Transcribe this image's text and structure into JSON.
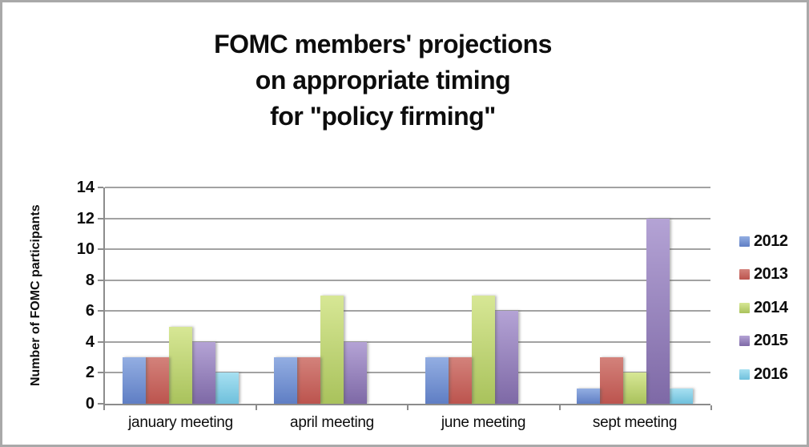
{
  "window": {
    "background": "#ffffff",
    "border_color": "#a9a9a9"
  },
  "header": {
    "title_lines": [
      "FOMC members' projections",
      "on appropriate timing",
      "for \"policy firming\""
    ]
  },
  "chart_data": {
    "type": "bar",
    "title": "FOMC members' projections on appropriate timing for \"policy firming\"",
    "xlabel": "",
    "ylabel": "Number of FOMC participants",
    "ylim": [
      0,
      14
    ],
    "yticks": [
      0,
      2,
      4,
      6,
      8,
      10,
      12,
      14
    ],
    "grid": true,
    "legend_position": "right",
    "categories": [
      "january meeting",
      "april meeting",
      "june meeting",
      "sept meeting"
    ],
    "series": [
      {
        "name": "2012",
        "values": [
          3,
          3,
          3,
          1
        ],
        "color_top": "#93aee2",
        "color_bottom": "#5f7ec4"
      },
      {
        "name": "2013",
        "values": [
          3,
          3,
          3,
          3
        ],
        "color_top": "#d3827b",
        "color_bottom": "#bc544e"
      },
      {
        "name": "2014",
        "values": [
          5,
          7,
          7,
          2
        ],
        "color_top": "#d7e795",
        "color_bottom": "#a9c25c"
      },
      {
        "name": "2015",
        "values": [
          4,
          4,
          6,
          12
        ],
        "color_top": "#b4a3d5",
        "color_bottom": "#7e69a6"
      },
      {
        "name": "2016",
        "values": [
          2,
          0,
          0,
          1
        ],
        "color_top": "#a7e0f1",
        "color_bottom": "#6fc0dc"
      }
    ],
    "colors": {
      "gridline": "#a2a2a2",
      "axis": "#8c8c8c",
      "text": "#0d0d0d"
    }
  }
}
